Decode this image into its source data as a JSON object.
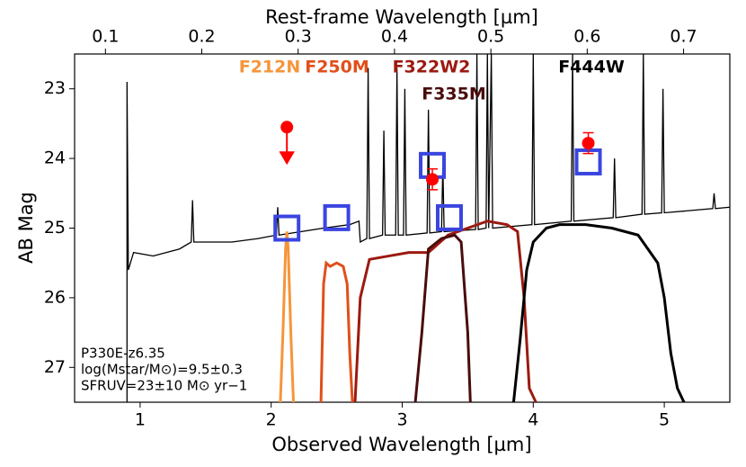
{
  "chart_data": {
    "type": "line",
    "xlabel": "Observed Wavelength [µm]",
    "ylabel": "AB Mag",
    "x2label": "Rest-frame Wavelength [µm]",
    "xlim": [
      0.5,
      5.5
    ],
    "xticks": [
      1,
      2,
      3,
      4,
      5
    ],
    "x2lim": [
      0.068,
      0.748
    ],
    "x2ticks": [
      0.1,
      0.2,
      0.3,
      0.4,
      0.5,
      0.6,
      0.7
    ],
    "ylim": [
      27.5,
      22.5
    ],
    "yticks": [
      23,
      24,
      25,
      26,
      27
    ],
    "annotations": [
      "P330E-z6.35",
      "log(Mstar/M⊙)=9.5±0.3",
      "SFRUV=23±10 M⊙ yr−1"
    ],
    "spectrum": {
      "color": "#000000",
      "x": [
        0.9,
        0.9,
        0.91,
        0.95,
        1.1,
        1.3,
        1.39,
        1.4,
        1.41,
        1.7,
        1.9,
        2.04,
        2.05,
        2.06,
        2.4,
        2.6,
        2.67,
        2.68,
        2.73,
        2.74,
        2.75,
        2.85,
        2.86,
        2.87,
        2.95,
        2.96,
        2.97,
        3.01,
        3.02,
        3.03,
        3.19,
        3.2,
        3.21,
        3.3,
        3.31,
        3.32,
        3.56,
        3.57,
        3.58,
        3.64,
        3.65,
        3.66,
        3.68,
        3.69,
        3.99,
        4.0,
        4.01,
        4.29,
        4.3,
        4.31,
        4.61,
        4.62,
        4.63,
        4.83,
        4.84,
        4.85,
        4.98,
        4.99,
        5.0,
        5.37,
        5.38,
        5.39,
        5.5
      ],
      "values": [
        27.5,
        22.9,
        25.6,
        25.35,
        25.4,
        25.3,
        25.2,
        24.6,
        25.2,
        25.2,
        25.15,
        25.1,
        24.7,
        25.1,
        25.0,
        24.95,
        24.9,
        25.2,
        25.15,
        22.7,
        25.15,
        25.1,
        23.6,
        25.1,
        25.1,
        22.7,
        25.1,
        25.1,
        23.0,
        25.1,
        25.07,
        23.3,
        25.07,
        25.05,
        24.1,
        25.05,
        25.02,
        22.5,
        25.02,
        25.0,
        22.5,
        25.0,
        22.5,
        25.0,
        24.95,
        22.5,
        24.95,
        24.9,
        22.5,
        24.9,
        24.85,
        24.0,
        24.85,
        24.8,
        22.5,
        24.8,
        24.78,
        23.0,
        24.78,
        24.72,
        24.5,
        24.72,
        24.7
      ]
    },
    "filters": [
      {
        "name": "F212N",
        "color": "#f5953b",
        "x": [
          2.07,
          2.09,
          2.11,
          2.12,
          2.13,
          2.15,
          2.17
        ],
        "values": [
          27.5,
          26.5,
          25.3,
          25.05,
          25.3,
          26.5,
          27.5
        ]
      },
      {
        "name": "F250M",
        "color": "#e0501a",
        "x": [
          2.38,
          2.4,
          2.42,
          2.45,
          2.5,
          2.55,
          2.58,
          2.6,
          2.62
        ],
        "values": [
          27.5,
          25.8,
          25.5,
          25.55,
          25.5,
          25.55,
          25.8,
          26.8,
          27.5
        ]
      },
      {
        "name": "F322W2",
        "color": "#9b1a10",
        "x": [
          2.64,
          2.68,
          2.75,
          2.9,
          3.05,
          3.2,
          3.35,
          3.5,
          3.65,
          3.8,
          3.88,
          3.93,
          3.97,
          4.02
        ],
        "values": [
          27.5,
          26.0,
          25.45,
          25.4,
          25.35,
          25.35,
          25.1,
          25.0,
          24.9,
          24.95,
          25.05,
          26.0,
          27.3,
          27.5
        ]
      },
      {
        "name": "F335M",
        "color": "#4a0c0c",
        "x": [
          3.1,
          3.15,
          3.2,
          3.3,
          3.4,
          3.45,
          3.5,
          3.52
        ],
        "values": [
          27.5,
          26.5,
          25.3,
          25.15,
          25.1,
          25.2,
          26.5,
          27.5
        ]
      },
      {
        "name": "F444W",
        "color": "#000000",
        "x": [
          3.85,
          3.9,
          3.95,
          4.0,
          4.1,
          4.2,
          4.4,
          4.6,
          4.8,
          4.95,
          5.0,
          5.05,
          5.1,
          5.15
        ],
        "values": [
          27.5,
          26.6,
          25.6,
          25.2,
          25.0,
          24.95,
          24.95,
          25.0,
          25.1,
          25.5,
          26.0,
          26.8,
          27.3,
          27.5
        ]
      }
    ],
    "model_photometry": {
      "color": "#3a45e0",
      "x": [
        2.12,
        2.5,
        3.23,
        3.36,
        4.42
      ],
      "values": [
        25.0,
        24.85,
        24.1,
        24.85,
        24.05
      ]
    },
    "observed_photometry": {
      "color": "#ff0000",
      "x": [
        2.12,
        3.23,
        4.42
      ],
      "values": [
        23.55,
        24.3,
        23.78
      ],
      "errors": [
        null,
        0.15,
        0.15
      ],
      "upper_limit": [
        true,
        false,
        false
      ]
    }
  }
}
